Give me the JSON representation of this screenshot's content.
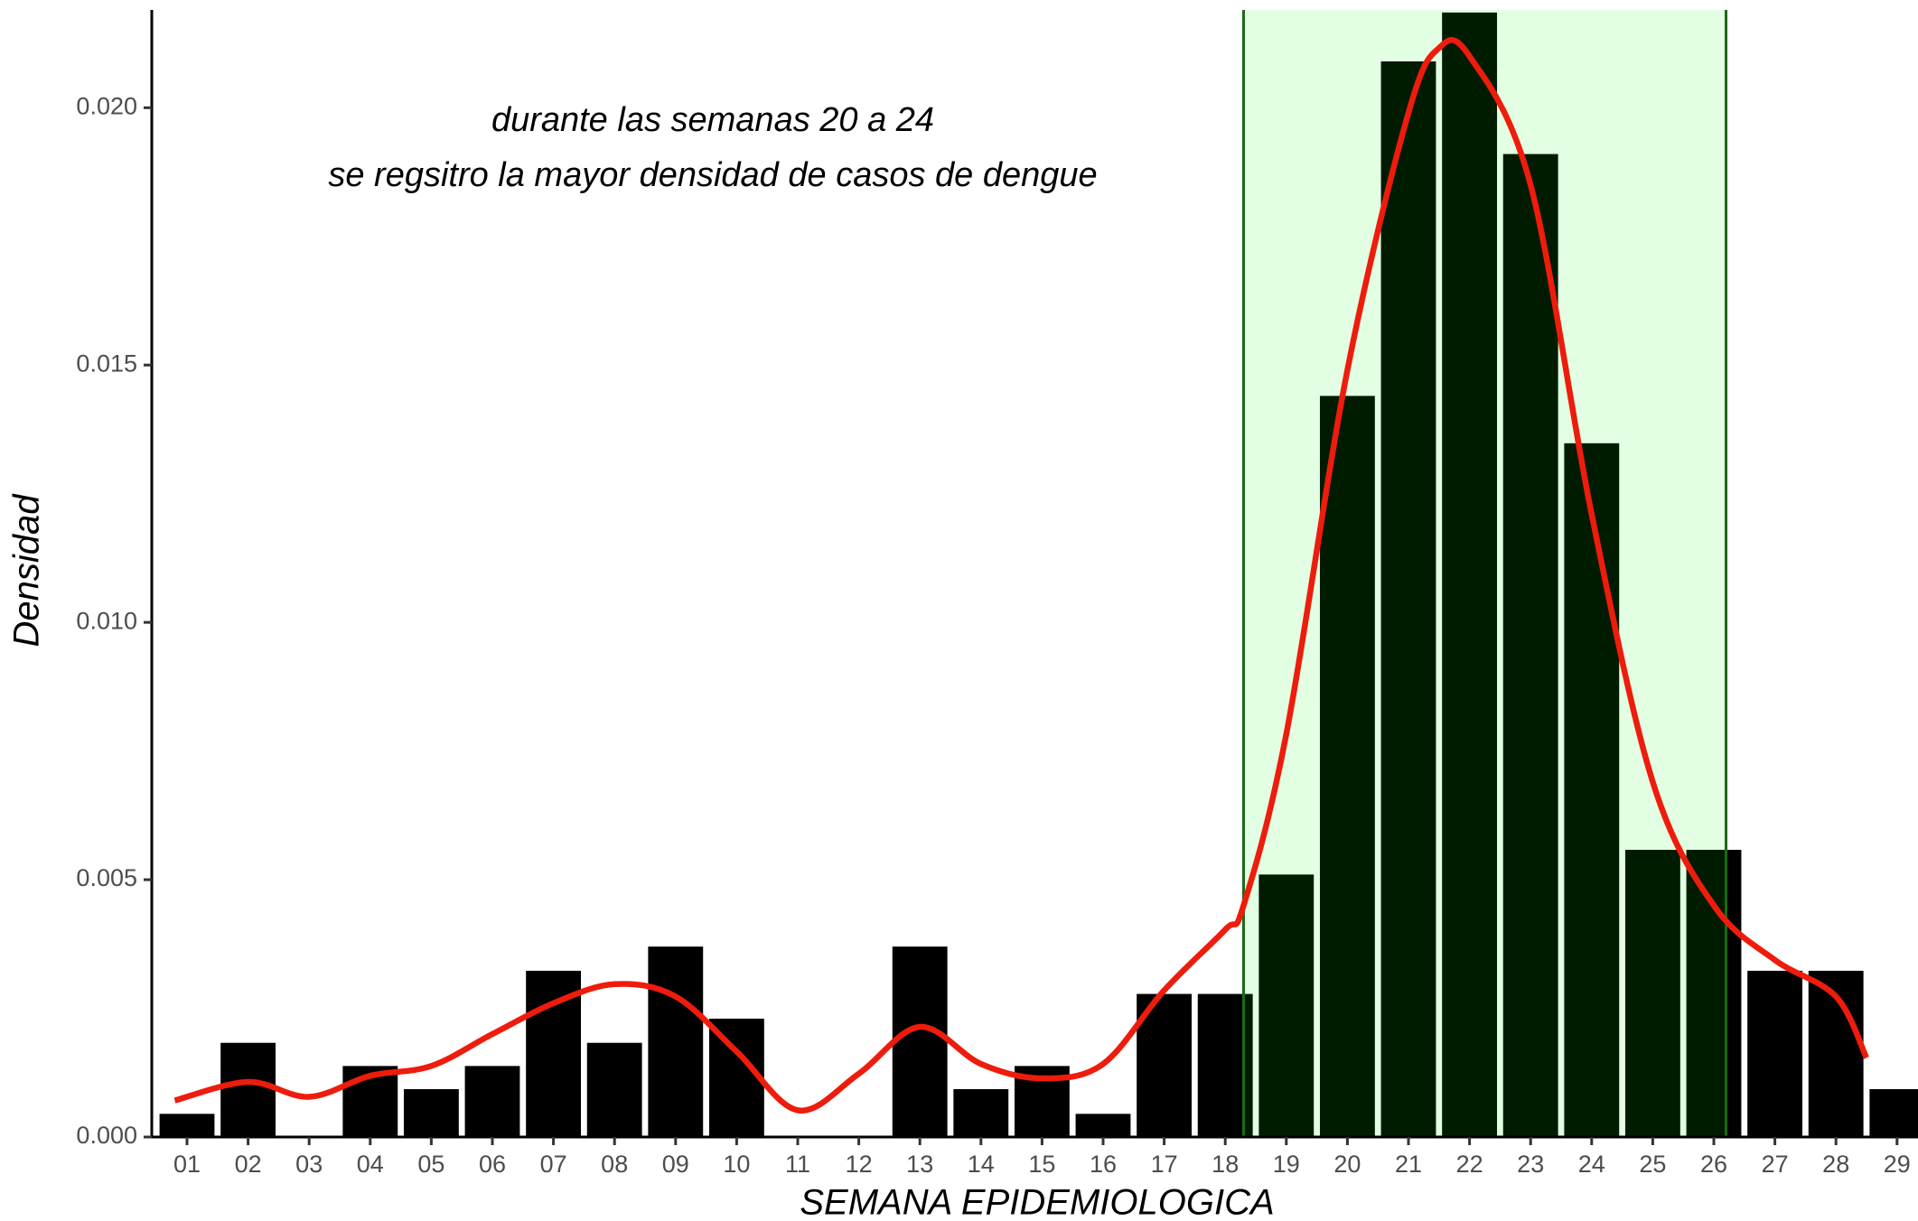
{
  "chart_data": {
    "type": "bar",
    "annotation": [
      "durante las semanas 20 a 24",
      "se regsitro la mayor densidad de casos de dengue"
    ],
    "xlabel": "SEMANA EPIDEMIOLOGICA",
    "ylabel": "Densidad",
    "categories": [
      "01",
      "02",
      "03",
      "04",
      "05",
      "06",
      "07",
      "08",
      "09",
      "10",
      "11",
      "12",
      "13",
      "14",
      "15",
      "16",
      "17",
      "18",
      "19",
      "20",
      "21",
      "22",
      "23",
      "24",
      "25",
      "26",
      "27",
      "28",
      "29"
    ],
    "values": [
      0.00045,
      0.00183,
      0,
      0.00138,
      0.00093,
      0.00138,
      0.00323,
      0.00183,
      0.0037,
      0.0023,
      0,
      0,
      0.0037,
      0.00093,
      0.00138,
      0.00045,
      0.00278,
      0.00278,
      0.0051,
      0.0144,
      0.0209,
      0.02185,
      0.0191,
      0.01348,
      0.00558,
      0.00558,
      0.00323,
      0.00323,
      0.00093
    ],
    "color": "#000000",
    "ylim": [
      0,
      0.0219
    ],
    "yticks": [
      {
        "value": 0,
        "label": "0.000"
      },
      {
        "value": 0.005,
        "label": "0.005"
      },
      {
        "value": 0.01,
        "label": "0.010"
      },
      {
        "value": 0.015,
        "label": "0.015"
      },
      {
        "value": 0.02,
        "label": "0.020"
      }
    ],
    "curve": {
      "color": "#ee1c0c",
      "x": [
        0.8,
        2,
        3,
        4,
        5,
        6,
        7,
        8,
        9,
        10,
        11,
        12,
        13,
        14,
        15,
        16,
        17,
        18,
        18.3,
        19,
        20,
        21,
        21.5,
        22,
        23,
        24,
        25,
        26,
        27,
        28,
        28.5
      ],
      "values": [
        0.00071,
        0.00107,
        0.00078,
        0.00119,
        0.00138,
        0.002,
        0.0026,
        0.00297,
        0.00273,
        0.00166,
        0.00052,
        0.00123,
        0.00214,
        0.00142,
        0.00114,
        0.00142,
        0.00285,
        0.00403,
        0.0045,
        0.00783,
        0.0149,
        0.0199,
        0.02116,
        0.021,
        0.0185,
        0.0121,
        0.0069,
        0.0045,
        0.00344,
        0.00273,
        0.00154
      ]
    },
    "highlight": {
      "range": [
        18.3,
        26.2
      ],
      "fill": "#00ff00",
      "opacity": 0.11,
      "border_color": "#1a6b1a"
    }
  }
}
